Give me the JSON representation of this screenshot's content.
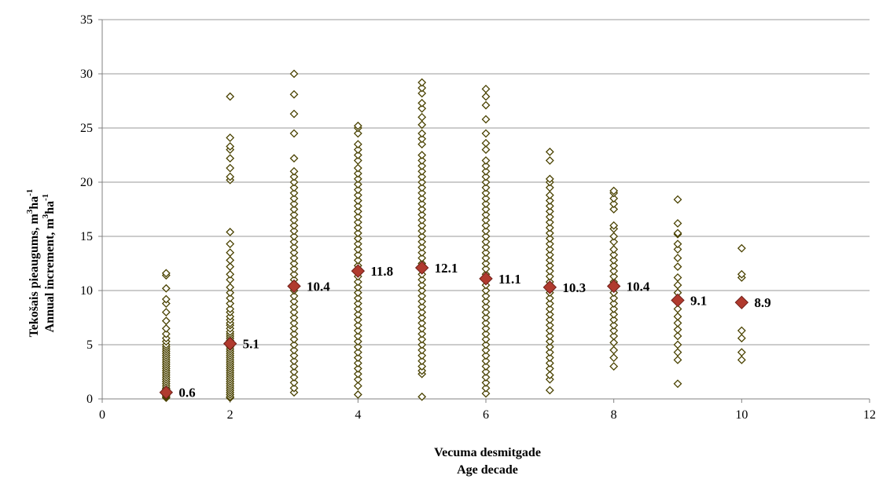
{
  "chart_data": {
    "type": "scatter",
    "title": "",
    "xlabel_lines": [
      "Vecuma desmitgade",
      "Age decade"
    ],
    "ylabel_lines": [
      {
        "text": "Tekošais pieaugums, m",
        "sup1": "3",
        "mid": "ha",
        "sup2": "-1"
      },
      {
        "text": "Annual increment, m",
        "sup1": "3",
        "mid": "ha",
        "sup2": "-1"
      }
    ],
    "xlim": [
      0,
      12
    ],
    "ylim": [
      0,
      35
    ],
    "xticks": [
      0,
      2,
      4,
      6,
      8,
      10,
      12
    ],
    "yticks": [
      0,
      5,
      10,
      15,
      20,
      25,
      30,
      35
    ],
    "grid": {
      "x": false,
      "y": true
    },
    "colors": {
      "points": "#4a4200",
      "mean_fill": "#b03a2e",
      "mean_edge": "#6e1e18",
      "grid": "#9a9a9a",
      "axis": "#808080"
    },
    "series": [
      {
        "marker": "open-diamond",
        "points": [
          {
            "x": 1,
            "y": [
              0.1,
              0.2,
              0.3,
              0.4,
              0.5,
              0.6,
              0.7,
              0.8,
              0.9,
              1.0,
              1.2,
              1.4,
              1.6,
              1.8,
              2.0,
              2.2,
              2.4,
              2.6,
              2.8,
              3.0,
              3.2,
              3.4,
              3.6,
              3.8,
              4.0,
              4.2,
              4.4,
              4.6,
              4.8,
              5.0,
              5.3,
              5.6,
              6.0,
              6.5,
              7.2,
              8.0,
              8.8,
              9.2,
              10.2,
              11.4,
              11.6
            ]
          },
          {
            "x": 2,
            "y": [
              0.1,
              0.2,
              0.4,
              0.6,
              0.8,
              1.0,
              1.2,
              1.4,
              1.6,
              1.8,
              2.0,
              2.2,
              2.4,
              2.6,
              2.8,
              3.0,
              3.2,
              3.4,
              3.6,
              3.8,
              4.0,
              4.2,
              4.4,
              4.6,
              4.8,
              5.0,
              5.2,
              5.4,
              5.6,
              5.8,
              6.0,
              6.2,
              6.5,
              6.8,
              7.0,
              7.3,
              7.6,
              8.0,
              8.3,
              8.8,
              9.3,
              9.8,
              10.3,
              11.0,
              11.5,
              12.2,
              12.8,
              13.5,
              14.3,
              15.4,
              20.2,
              20.5,
              21.3,
              22.2,
              23.0,
              23.3,
              24.1,
              27.9
            ]
          },
          {
            "x": 3,
            "y": [
              0.6,
              1.0,
              1.5,
              2.0,
              2.5,
              3.0,
              3.5,
              4.0,
              4.5,
              5.0,
              5.5,
              6.0,
              6.5,
              7.0,
              7.5,
              8.0,
              8.5,
              9.0,
              9.5,
              10.0,
              10.5,
              11.0,
              11.5,
              12.0,
              12.5,
              13.0,
              13.5,
              14.0,
              14.5,
              15.0,
              15.5,
              16.0,
              16.5,
              17.0,
              17.5,
              18.0,
              18.5,
              19.0,
              19.5,
              20.0,
              20.5,
              21.0,
              22.2,
              24.5,
              26.3,
              28.1,
              30.0
            ]
          },
          {
            "x": 4,
            "y": [
              0.4,
              1.2,
              1.8,
              2.3,
              2.8,
              3.3,
              3.8,
              4.3,
              4.8,
              5.3,
              5.8,
              6.3,
              6.8,
              7.3,
              7.8,
              8.3,
              8.8,
              9.3,
              9.8,
              10.3,
              10.8,
              11.3,
              11.8,
              12.3,
              12.8,
              13.3,
              13.8,
              14.3,
              14.8,
              15.3,
              15.8,
              16.3,
              16.8,
              17.3,
              17.8,
              18.3,
              18.8,
              19.3,
              19.8,
              20.3,
              20.8,
              21.3,
              22.0,
              22.5,
              23.0,
              23.5,
              24.5,
              25.0,
              25.2
            ]
          },
          {
            "x": 5,
            "y": [
              0.2,
              2.3,
              2.6,
              3.0,
              3.5,
              4.0,
              4.5,
              5.0,
              5.5,
              6.0,
              6.5,
              7.0,
              7.5,
              8.0,
              8.5,
              9.0,
              9.5,
              10.0,
              10.5,
              11.0,
              11.5,
              12.0,
              12.5,
              13.0,
              13.5,
              14.0,
              14.5,
              15.0,
              15.5,
              16.0,
              16.5,
              17.0,
              17.5,
              18.0,
              18.5,
              19.0,
              19.5,
              20.0,
              20.5,
              21.0,
              21.5,
              22.0,
              22.5,
              23.5,
              24.0,
              24.5,
              25.3,
              26.0,
              26.8,
              27.3,
              28.2,
              28.7,
              29.2
            ]
          },
          {
            "x": 6,
            "y": [
              0.5,
              1.0,
              1.5,
              2.0,
              2.5,
              3.0,
              3.5,
              4.0,
              4.5,
              5.0,
              5.5,
              6.0,
              6.5,
              7.0,
              7.5,
              8.0,
              8.5,
              9.0,
              9.5,
              10.0,
              10.5,
              11.0,
              11.5,
              12.0,
              12.5,
              13.0,
              13.5,
              14.0,
              14.5,
              15.0,
              15.5,
              16.0,
              16.5,
              17.0,
              17.5,
              18.0,
              18.5,
              19.0,
              19.5,
              20.0,
              20.5,
              21.0,
              21.5,
              22.0,
              23.0,
              23.6,
              24.5,
              25.8,
              27.1,
              27.9,
              28.6
            ]
          },
          {
            "x": 7,
            "y": [
              0.8,
              1.8,
              2.2,
              2.8,
              3.3,
              3.8,
              4.3,
              4.8,
              5.3,
              5.8,
              6.3,
              6.8,
              7.3,
              7.8,
              8.3,
              8.8,
              9.3,
              9.8,
              10.3,
              10.8,
              11.3,
              11.8,
              12.3,
              12.8,
              13.3,
              13.8,
              14.3,
              14.8,
              15.3,
              15.8,
              16.3,
              16.8,
              17.3,
              17.8,
              18.3,
              18.8,
              19.5,
              20.0,
              20.3,
              22.0,
              22.8
            ]
          },
          {
            "x": 8,
            "y": [
              3.0,
              3.8,
              4.5,
              5.2,
              5.8,
              6.3,
              6.8,
              7.3,
              7.8,
              8.3,
              8.8,
              9.3,
              9.8,
              10.3,
              10.8,
              11.3,
              11.8,
              12.3,
              12.8,
              13.3,
              13.8,
              14.5,
              15.0,
              15.7,
              16.0,
              17.5,
              18.0,
              18.5,
              19.0,
              19.2
            ]
          },
          {
            "x": 9,
            "y": [
              1.4,
              3.6,
              4.3,
              5.0,
              5.8,
              6.4,
              7.0,
              7.6,
              8.3,
              9.2,
              9.8,
              10.5,
              11.2,
              12.2,
              13.0,
              13.8,
              14.3,
              15.2,
              15.3,
              16.2,
              18.4
            ]
          },
          {
            "x": 10,
            "y": [
              3.6,
              4.3,
              5.6,
              6.3,
              8.8,
              9.0,
              11.2,
              11.5,
              13.9
            ]
          }
        ]
      },
      {
        "marker": "filled-diamond",
        "points": [
          {
            "x": 1,
            "y": 0.6,
            "label": "0.6"
          },
          {
            "x": 2,
            "y": 5.1,
            "label": "5.1"
          },
          {
            "x": 3,
            "y": 10.4,
            "label": "10.4"
          },
          {
            "x": 4,
            "y": 11.8,
            "label": "11.8"
          },
          {
            "x": 5,
            "y": 12.1,
            "label": "12.1"
          },
          {
            "x": 6,
            "y": 11.1,
            "label": "11.1"
          },
          {
            "x": 7,
            "y": 10.3,
            "label": "10.3"
          },
          {
            "x": 8,
            "y": 10.4,
            "label": "10.4"
          },
          {
            "x": 9,
            "y": 9.1,
            "label": "9.1"
          },
          {
            "x": 10,
            "y": 8.9,
            "label": "8.9"
          }
        ]
      }
    ]
  }
}
